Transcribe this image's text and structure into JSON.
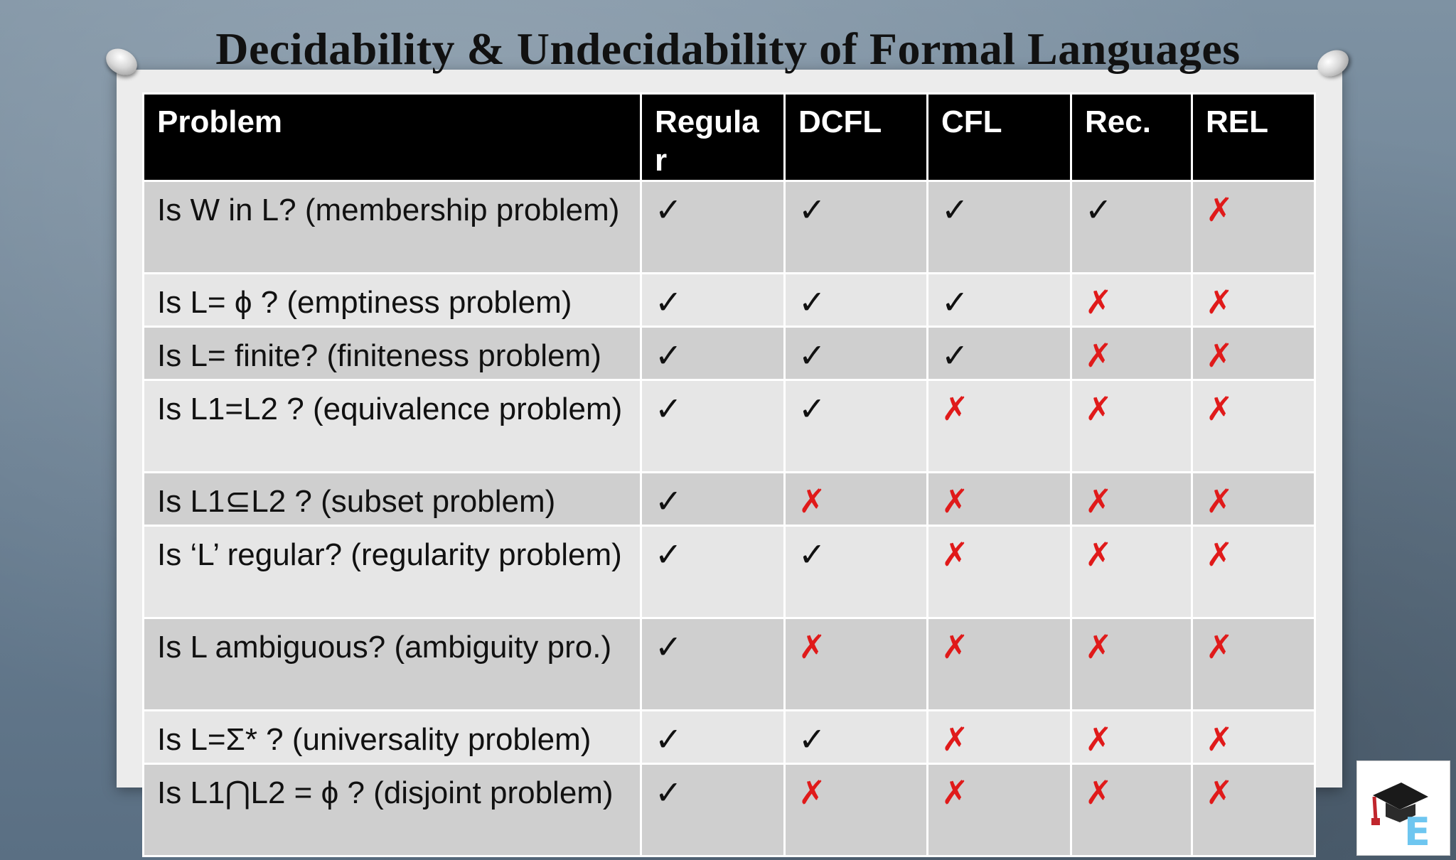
{
  "title": "Decidability & Undecidability of Formal Languages",
  "colors": {
    "yes": "#111111",
    "no": "#e01a1a",
    "header_bg": "#000000"
  },
  "symbols": {
    "yes": "✓",
    "no": "✗"
  },
  "table": {
    "headers": [
      "Problem",
      "Regular",
      "DCFL",
      "CFL",
      "Rec.",
      "REL"
    ],
    "rows": [
      {
        "problem": "Is W in L? (membership problem)",
        "marks": [
          "✓",
          "✓",
          "✓",
          "✓",
          "✗"
        ]
      },
      {
        "problem": "Is L= ϕ ? (emptiness problem)",
        "marks": [
          "✓",
          "✓",
          "✓",
          "✗",
          "✗"
        ]
      },
      {
        "problem": "Is L= finite? (finiteness problem)",
        "marks": [
          "✓",
          "✓",
          "✓",
          "✗",
          "✗"
        ]
      },
      {
        "problem": "Is L1=L2 ? (equivalence problem)",
        "marks": [
          "✓",
          "✓",
          "✗",
          "✗",
          "✗"
        ]
      },
      {
        "problem": "Is L1⊆L2 ? (subset problem)",
        "marks": [
          "✓",
          "✗",
          "✗",
          "✗",
          "✗"
        ]
      },
      {
        "problem": "Is ‘L’ regular? (regularity problem)",
        "marks": [
          "✓",
          "✓",
          "✗",
          "✗",
          "✗"
        ]
      },
      {
        "problem": "Is L ambiguous? (ambiguity pro.)",
        "marks": [
          "✓",
          "✗",
          "✗",
          "✗",
          "✗"
        ]
      },
      {
        "problem": "Is L=Σ* ? (universality problem)",
        "marks": [
          "✓",
          "✓",
          "✗",
          "✗",
          "✗"
        ]
      },
      {
        "problem": "Is L1⋂L2 = ϕ ? (disjoint problem)",
        "marks": [
          "✓",
          "✗",
          "✗",
          "✗",
          "✗"
        ]
      }
    ]
  },
  "logo": {
    "icon": "graduation-cap-icon",
    "letter": "E"
  }
}
